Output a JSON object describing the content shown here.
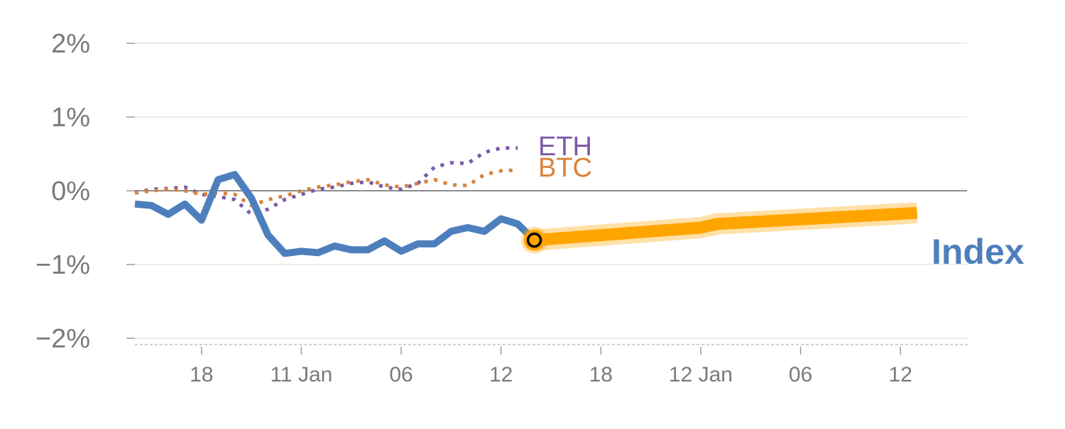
{
  "chart_data": {
    "type": "line",
    "title": "",
    "xlabel": "",
    "ylabel": "",
    "ylim": [
      -2,
      2
    ],
    "y_ticks": [
      {
        "value": 2,
        "label": "2%"
      },
      {
        "value": 1,
        "label": "1%"
      },
      {
        "value": 0,
        "label": "0%"
      },
      {
        "value": -1,
        "label": "−1%"
      },
      {
        "value": -2,
        "label": "−2%"
      }
    ],
    "x_range": [
      0,
      50
    ],
    "x_ticks": [
      {
        "value": 4,
        "label": "18"
      },
      {
        "value": 10,
        "label": "11 Jan"
      },
      {
        "value": 16,
        "label": "06"
      },
      {
        "value": 22,
        "label": "12"
      },
      {
        "value": 28,
        "label": "18"
      },
      {
        "value": 34,
        "label": "12 Jan"
      },
      {
        "value": 40,
        "label": "06"
      },
      {
        "value": 46,
        "label": "12"
      }
    ],
    "grid": true,
    "series": [
      {
        "name": "ETH",
        "style": "dotted",
        "color": "#7b5ba6",
        "x": [
          0,
          1,
          2,
          3,
          4,
          5,
          6,
          7,
          8,
          9,
          10,
          11,
          12,
          13,
          14,
          15,
          16,
          17,
          18,
          19,
          20,
          21,
          22,
          23
        ],
        "y": [
          -0.03,
          0.02,
          0.03,
          0.05,
          -0.05,
          -0.08,
          -0.12,
          -0.32,
          -0.25,
          -0.12,
          -0.05,
          0.02,
          0.05,
          0.1,
          0.12,
          0.05,
          0.02,
          0.1,
          0.32,
          0.38,
          0.37,
          0.52,
          0.58,
          0.58
        ]
      },
      {
        "name": "BTC",
        "style": "dotted",
        "color": "#d9823b",
        "x": [
          0,
          1,
          2,
          3,
          4,
          5,
          6,
          7,
          8,
          9,
          10,
          11,
          12,
          13,
          14,
          15,
          16,
          17,
          18,
          19,
          20,
          21,
          22,
          23
        ],
        "y": [
          -0.03,
          0.0,
          0.02,
          0.0,
          -0.05,
          -0.03,
          -0.05,
          -0.2,
          -0.12,
          -0.07,
          0.0,
          0.05,
          0.08,
          0.12,
          0.15,
          0.08,
          0.05,
          0.1,
          0.15,
          0.08,
          0.07,
          0.22,
          0.27,
          0.28
        ]
      },
      {
        "name": "Index",
        "style": "solid",
        "color": "#4e7fbd",
        "x": [
          0,
          1,
          2,
          3,
          4,
          5,
          6,
          7,
          8,
          9,
          10,
          11,
          12,
          13,
          14,
          15,
          16,
          17,
          18,
          19,
          20,
          21,
          22,
          23,
          24
        ],
        "y": [
          -0.18,
          -0.2,
          -0.32,
          -0.18,
          -0.4,
          0.15,
          0.22,
          -0.1,
          -0.6,
          -0.85,
          -0.82,
          -0.84,
          -0.75,
          -0.8,
          -0.8,
          -0.68,
          -0.82,
          -0.72,
          -0.72,
          -0.55,
          -0.5,
          -0.55,
          -0.38,
          -0.45,
          -0.67
        ]
      },
      {
        "name": "",
        "role": "projection",
        "style": "band",
        "color": "#ffa500",
        "x": [
          24,
          34,
          35,
          47
        ],
        "y": [
          -0.67,
          -0.5,
          -0.45,
          -0.3
        ]
      }
    ],
    "series_labels": [
      {
        "series": "ETH",
        "text": "ETH",
        "color": "#7b5ba6"
      },
      {
        "series": "BTC",
        "text": "BTC",
        "color": "#d9823b"
      },
      {
        "series": "Index",
        "text": "Index",
        "color": "#4e7fbd"
      }
    ],
    "marker": {
      "x": 24,
      "y": -0.67,
      "fill": "#ffa500",
      "ring_color": "#000000"
    }
  }
}
